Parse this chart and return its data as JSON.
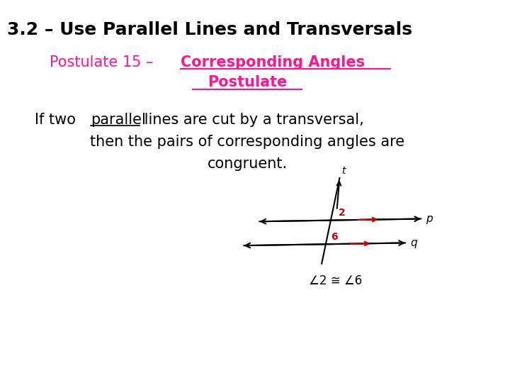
{
  "title": "3.2 – Use Parallel Lines and Transversals",
  "postulate_plain": "Postulate 15 – ",
  "postulate_bold1": "Corresponding Angles",
  "postulate_bold2": "Postulate",
  "body_line1a": "If two ",
  "body_line1b": "parallel",
  "body_line1c": " lines are cut by a transversal,",
  "body_line2": "then the pairs of corresponding angles are",
  "body_line3": "congruent.",
  "congruence": "∠2 ≅ ∠6",
  "pink": "#FF1493",
  "red": "#CC0000",
  "black": "#000000",
  "white": "#FFFFFF",
  "bg": "#FFFFFF",
  "title_fontsize": 18,
  "postulate_fontsize": 15,
  "body_fontsize": 15
}
